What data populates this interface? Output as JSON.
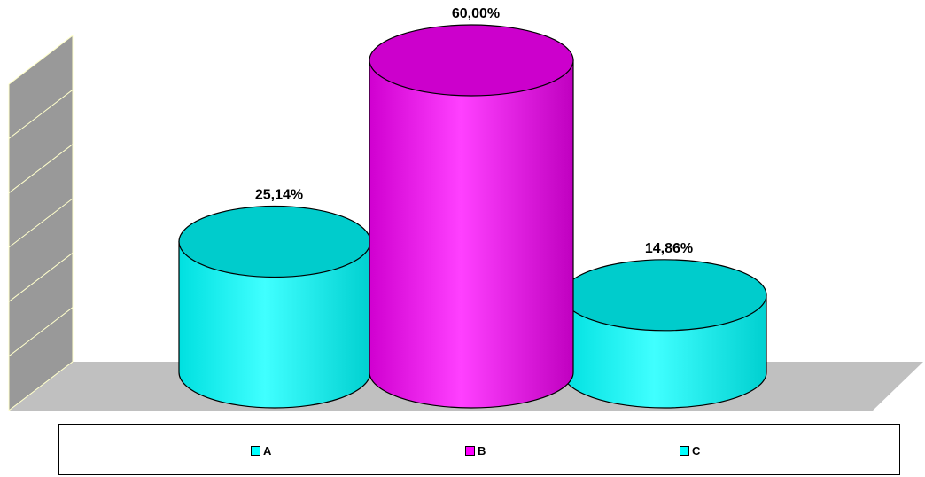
{
  "chart_data": {
    "type": "bar",
    "style": "3d-cylinder",
    "categories": [
      "A",
      "B",
      "C"
    ],
    "values": [
      25.14,
      60.0,
      14.86
    ],
    "data_labels": [
      "25,14%",
      "60,00%",
      "14,86%"
    ],
    "unit": "%",
    "title": "",
    "xlabel": "",
    "ylabel": "",
    "ylim": [
      0,
      60
    ],
    "grid": true,
    "legend": "bottom",
    "colors": {
      "A": "#00ffff",
      "B": "#ff00ff",
      "C": "#00ffff",
      "A_top": "#00cccc",
      "B_top": "#cc00cc",
      "C_top": "#00cccc",
      "wall": "#999999",
      "floor": "#c0c0c0",
      "grid_line": "#ffffcc"
    }
  }
}
